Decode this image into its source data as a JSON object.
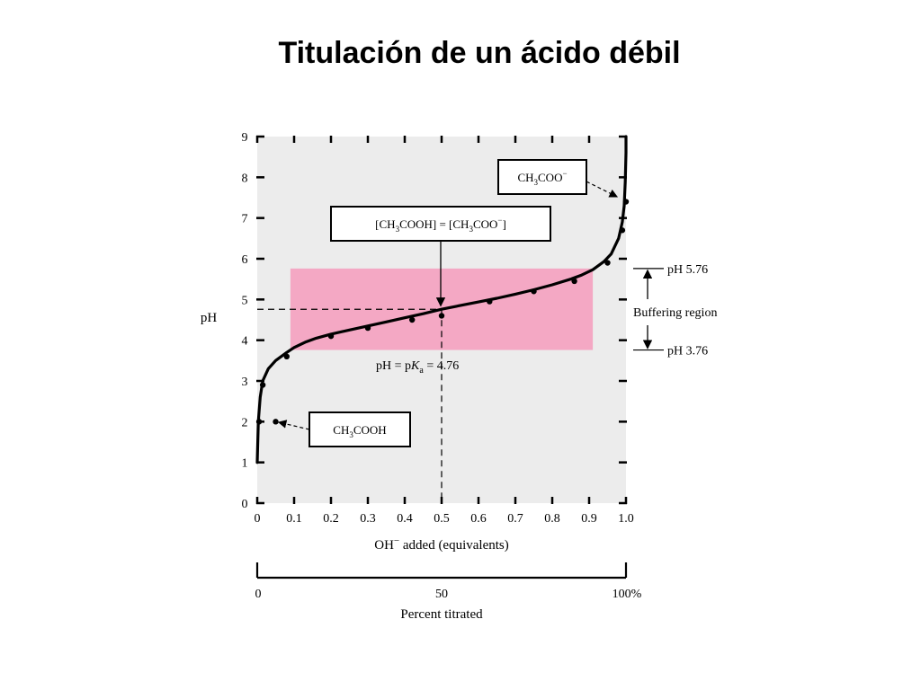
{
  "slide": {
    "title": "Titulación de un ácido débil"
  },
  "chart_data": {
    "type": "line",
    "xlabel_parts": {
      "before": "OH",
      "sup": "−",
      "after": " added (equivalents)"
    },
    "ylabel": "pH",
    "xlim": [
      0,
      1
    ],
    "ylim": [
      0,
      9
    ],
    "xticks": [
      0,
      0.1,
      0.2,
      0.3,
      0.4,
      0.5,
      0.6,
      0.7,
      0.8,
      0.9,
      1.0
    ],
    "xtick_labels": [
      "0",
      "0.1",
      "0.2",
      "0.3",
      "0.4",
      "0.5",
      "0.6",
      "0.7",
      "0.8",
      "0.9",
      "1.0"
    ],
    "yticks": [
      0,
      1,
      2,
      3,
      4,
      5,
      6,
      7,
      8,
      9
    ],
    "ytick_labels": [
      "0",
      "1",
      "2",
      "3",
      "4",
      "5",
      "6",
      "7",
      "8",
      "9"
    ],
    "grid": false,
    "buffer_region": {
      "x_range": [
        0.09,
        0.91
      ],
      "y_range": [
        3.76,
        5.76
      ],
      "color": "#f4a8c4"
    },
    "plot_background": "#ececec",
    "series": [
      {
        "color": "#000000",
        "x": [
          0.0,
          0.003,
          0.008,
          0.015,
          0.03,
          0.05,
          0.08,
          0.1,
          0.13,
          0.16,
          0.2,
          0.25,
          0.3,
          0.35,
          0.4,
          0.45,
          0.5,
          0.55,
          0.6,
          0.65,
          0.7,
          0.75,
          0.8,
          0.85,
          0.88,
          0.91,
          0.94,
          0.96,
          0.98,
          0.99,
          0.995,
          0.998,
          1.0,
          1.0
        ],
        "y": [
          1.0,
          2.0,
          2.6,
          3.0,
          3.3,
          3.5,
          3.7,
          3.82,
          3.95,
          4.05,
          4.15,
          4.25,
          4.35,
          4.45,
          4.55,
          4.65,
          4.76,
          4.85,
          4.94,
          5.03,
          5.13,
          5.24,
          5.36,
          5.5,
          5.6,
          5.73,
          5.93,
          6.12,
          6.5,
          6.9,
          7.3,
          7.9,
          8.6,
          9.0
        ]
      }
    ],
    "markers": {
      "x": [
        0.005,
        0.015,
        0.05,
        0.08,
        0.2,
        0.3,
        0.42,
        0.5,
        0.63,
        0.75,
        0.86,
        0.95,
        0.99,
        1.0
      ],
      "y": [
        2.0,
        2.9,
        2.0,
        3.6,
        4.1,
        4.3,
        4.5,
        4.6,
        4.95,
        5.2,
        5.45,
        5.9,
        6.7,
        7.4
      ]
    },
    "pka_guide": {
      "x": 0.5,
      "y": 4.76
    },
    "annotations": {
      "equality_box_parts": [
        {
          "t": "[CH"
        },
        {
          "t": "3",
          "sub": true
        },
        {
          "t": "COOH] = [CH"
        },
        {
          "t": "3",
          "sub": true
        },
        {
          "t": "COO"
        },
        {
          "t": "−",
          "sup": true
        },
        {
          "t": "]"
        }
      ],
      "acetate_box_parts": [
        {
          "t": "CH"
        },
        {
          "t": "3",
          "sub": true
        },
        {
          "t": "COO"
        },
        {
          "t": "−",
          "sup": true
        }
      ],
      "acid_box_parts": [
        {
          "t": "CH"
        },
        {
          "t": "3",
          "sub": true
        },
        {
          "t": "COOH"
        }
      ],
      "pka_label_parts": [
        {
          "t": "pH = p"
        },
        {
          "t": "K",
          "italic": true
        },
        {
          "t": "a",
          "sub": true
        },
        {
          "t": " = 4.76"
        }
      ],
      "buffer_top_label": "pH 5.76",
      "buffer_bottom_label": "pH 3.76",
      "buffer_label": "Buffering region"
    },
    "percent_axis": {
      "label": "Percent titrated",
      "ticks": [
        "0",
        "50",
        "100%"
      ]
    }
  }
}
